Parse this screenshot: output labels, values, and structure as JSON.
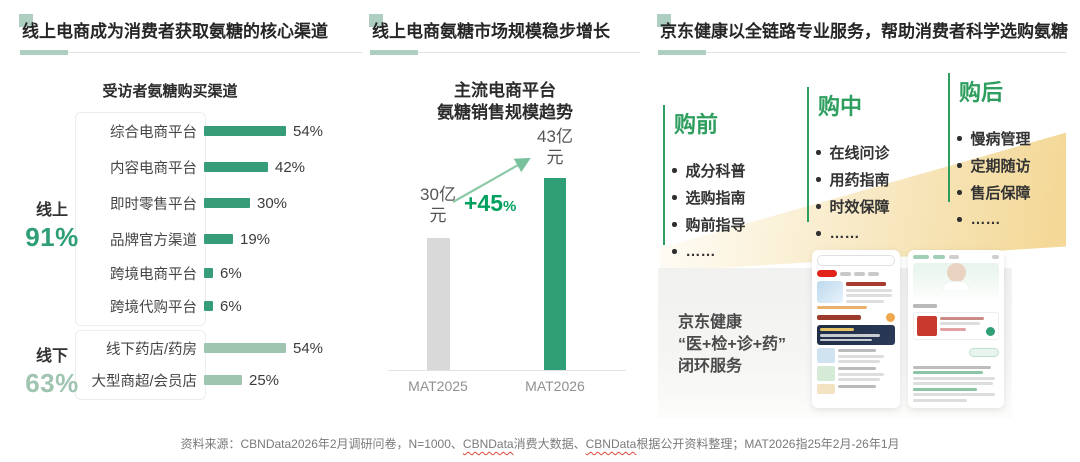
{
  "colors": {
    "accent_sage": "#AECFC0",
    "bar_online_green": "#379D79",
    "bar_offline_sage": "#9FC5B1",
    "bar_gray": "#D9D9D9",
    "bar_green": "#2E9E74",
    "growth_green": "#00A05F",
    "stage_green": "#2E9E5F",
    "jd_red": "#E2231A"
  },
  "chart_data": [
    {
      "type": "bar",
      "orientation": "horizontal",
      "title": "受访者氨糖购买渠道",
      "unit": "%",
      "xlim": [
        0,
        60
      ],
      "groups": [
        {
          "name": "线上",
          "share": "91%",
          "categories": [
            "综合电商平台",
            "内容电商平台",
            "即时零售平台",
            "品牌官方渠道",
            "跨境电商平台",
            "跨境代购平台"
          ],
          "values": [
            54,
            42,
            30,
            19,
            6,
            6
          ]
        },
        {
          "name": "线下",
          "share": "63%",
          "categories": [
            "线下药店/药房",
            "大型商超/会员店"
          ],
          "values": [
            54,
            25
          ]
        }
      ]
    },
    {
      "type": "bar",
      "title": "主流电商平台氨糖销售规模趋势",
      "categories": [
        "MAT2025",
        "MAT2026"
      ],
      "values": [
        30,
        43
      ],
      "unit": "亿元",
      "growth_label": "+45%",
      "series_colors": [
        "#D9D9D9",
        "#2E9E74"
      ],
      "grid": false
    }
  ],
  "panels": {
    "left": {
      "title": "线上电商成为消费者获取氨糖的核心渠道",
      "subtitle": "受访者氨糖购买渠道"
    },
    "middle": {
      "title": "线上电商氨糖市场规模稳步增长",
      "subtitle_line1": "主流电商平台",
      "subtitle_line2": "氨糖销售规模趋势",
      "bars": [
        {
          "value_line1": "30亿",
          "value_line2": "元",
          "axis": "MAT2025"
        },
        {
          "value_line1": "43亿",
          "value_line2": "元",
          "axis": "MAT2026"
        }
      ],
      "growth_value": "+45",
      "growth_unit": "%"
    },
    "right": {
      "title": "京东健康以全链路专业服务，帮助消费者科学选购氨糖",
      "stages": [
        {
          "name": "购前",
          "items": [
            "成分科普",
            "选购指南",
            "购前指导",
            "……"
          ]
        },
        {
          "name": "购中",
          "items": [
            "在线问诊",
            "用药指南",
            "时效保障",
            "……"
          ]
        },
        {
          "name": "购后",
          "items": [
            "慢病管理",
            "定期随访",
            "售后保障",
            "……"
          ]
        }
      ],
      "jd_lines": [
        "京东健康",
        "“医+检+诊+药”",
        "闭环服务"
      ]
    }
  },
  "footer": {
    "parts": [
      {
        "text": "资料来源：CBNData2026年2月调研问卷，N=1000、",
        "wavy": false
      },
      {
        "text": "CBNData",
        "wavy": true
      },
      {
        "text": "消费大数据、",
        "wavy": false
      },
      {
        "text": "CBNData",
        "wavy": true
      },
      {
        "text": "根据公开资料整理；MAT2026指25年2月-26年1月",
        "wavy": false
      }
    ]
  }
}
